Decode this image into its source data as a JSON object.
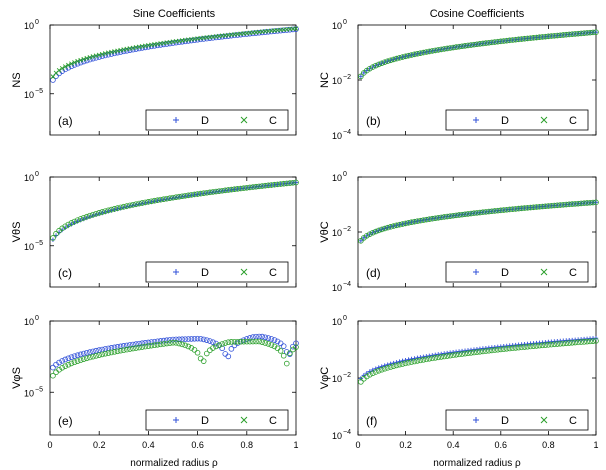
{
  "figure": {
    "column_titles": [
      "Sine Coefficients",
      "Cosine Coefficients"
    ],
    "xlabel": "normalized radius ρ",
    "legend": {
      "D": "D",
      "C": "C",
      "D_marker": "+",
      "C_marker": "×"
    },
    "colors": {
      "D": "#3050d8",
      "C": "#2ca02c",
      "C_circle": "#2ca02c",
      "D_circle": "#3050d8"
    }
  },
  "chart_data": [
    {
      "type": "scatter",
      "panel": "(a)",
      "ylabel": "NS",
      "scale": "log",
      "ylim": [
        1e-08,
        1
      ],
      "xlim": [
        0,
        1
      ],
      "yticks": [
        {
          "base": "10",
          "exp": "0",
          "value": 1
        },
        {
          "base": "10",
          "exp": "−5",
          "value": 1e-05
        }
      ],
      "xticks": [],
      "circles_series": "D",
      "series": [
        {
          "name": "D",
          "model": "rise",
          "y0": 1e-05,
          "y1": 0.5
        },
        {
          "name": "C",
          "model": "rise",
          "y0": 2e-05,
          "y1": 0.55
        }
      ]
    },
    {
      "type": "scatter",
      "panel": "(b)",
      "ylabel": "NC",
      "scale": "log",
      "ylim": [
        0.0001,
        1
      ],
      "xlim": [
        0,
        1
      ],
      "yticks": [
        {
          "base": "10",
          "exp": "0",
          "value": 1
        },
        {
          "base": "10",
          "exp": "−2",
          "value": 0.01
        },
        {
          "base": "10",
          "exp": "−4",
          "value": 0.0001
        }
      ],
      "xticks": [],
      "circles_series": "C",
      "series": [
        {
          "name": "D",
          "model": "rise",
          "y0": 0.005,
          "y1": 0.55
        },
        {
          "name": "C",
          "model": "rise",
          "y0": 0.005,
          "y1": 0.55
        }
      ]
    },
    {
      "type": "scatter",
      "panel": "(c)",
      "ylabel": "VθS",
      "scale": "log",
      "ylim": [
        1e-08,
        1
      ],
      "xlim": [
        0,
        1
      ],
      "yticks": [
        {
          "base": "10",
          "exp": "0",
          "value": 1
        },
        {
          "base": "10",
          "exp": "−5",
          "value": 1e-05
        }
      ],
      "xticks": [],
      "circles_series": "C",
      "series": [
        {
          "name": "D",
          "model": "rise",
          "y0": 2e-06,
          "y1": 0.4
        },
        {
          "name": "C",
          "model": "rise",
          "y0": 3e-06,
          "y1": 0.4
        }
      ]
    },
    {
      "type": "scatter",
      "panel": "(d)",
      "ylabel": "VθC",
      "scale": "log",
      "ylim": [
        0.0001,
        1
      ],
      "xlim": [
        0,
        1
      ],
      "yticks": [
        {
          "base": "10",
          "exp": "0",
          "value": 1
        },
        {
          "base": "10",
          "exp": "−2",
          "value": 0.01
        },
        {
          "base": "10",
          "exp": "−4",
          "value": 0.0001
        }
      ],
      "xticks": [],
      "circles_series": "C",
      "series": [
        {
          "name": "D",
          "model": "rise",
          "y0": 0.002,
          "y1": 0.12
        },
        {
          "name": "C",
          "model": "rise",
          "y0": 0.002,
          "y1": 0.12
        }
      ]
    },
    {
      "type": "scatter",
      "panel": "(e)",
      "ylabel": "VφS",
      "scale": "log",
      "ylim": [
        1e-08,
        1
      ],
      "xlim": [
        0,
        1
      ],
      "yticks": [
        {
          "base": "10",
          "exp": "0",
          "value": 1
        },
        {
          "base": "10",
          "exp": "−5",
          "value": 1e-05
        }
      ],
      "xticks": [
        "0",
        "0.2",
        "0.4",
        "0.6",
        "0.8",
        "1"
      ],
      "circles_series": "both",
      "series": [
        {
          "name": "D",
          "model": "dips",
          "y0": 0.0001,
          "peak": 0.05,
          "dips": [
            0.72,
            0.97
          ],
          "tail": 0.1
        },
        {
          "name": "C",
          "model": "dips",
          "y0": 2e-05,
          "peak": 0.03,
          "dips": [
            0.62,
            0.96
          ],
          "tail": 0.04
        }
      ]
    },
    {
      "type": "scatter",
      "panel": "(f)",
      "ylabel": "VφC",
      "scale": "log",
      "ylim": [
        0.0001,
        1
      ],
      "xlim": [
        0,
        1
      ],
      "yticks": [
        {
          "base": "10",
          "exp": "0",
          "value": 1
        },
        {
          "base": "10",
          "exp": "−2",
          "value": 0.01
        },
        {
          "base": "10",
          "exp": "−4",
          "value": 0.0001
        }
      ],
      "xticks": [
        "0",
        "0.2",
        "0.4",
        "0.6",
        "0.8",
        "1"
      ],
      "circles_series": "C",
      "series": [
        {
          "name": "D",
          "model": "rise",
          "y0": 0.004,
          "y1": 0.25
        },
        {
          "name": "C",
          "model": "rise",
          "y0": 0.003,
          "y1": 0.2
        }
      ]
    }
  ]
}
